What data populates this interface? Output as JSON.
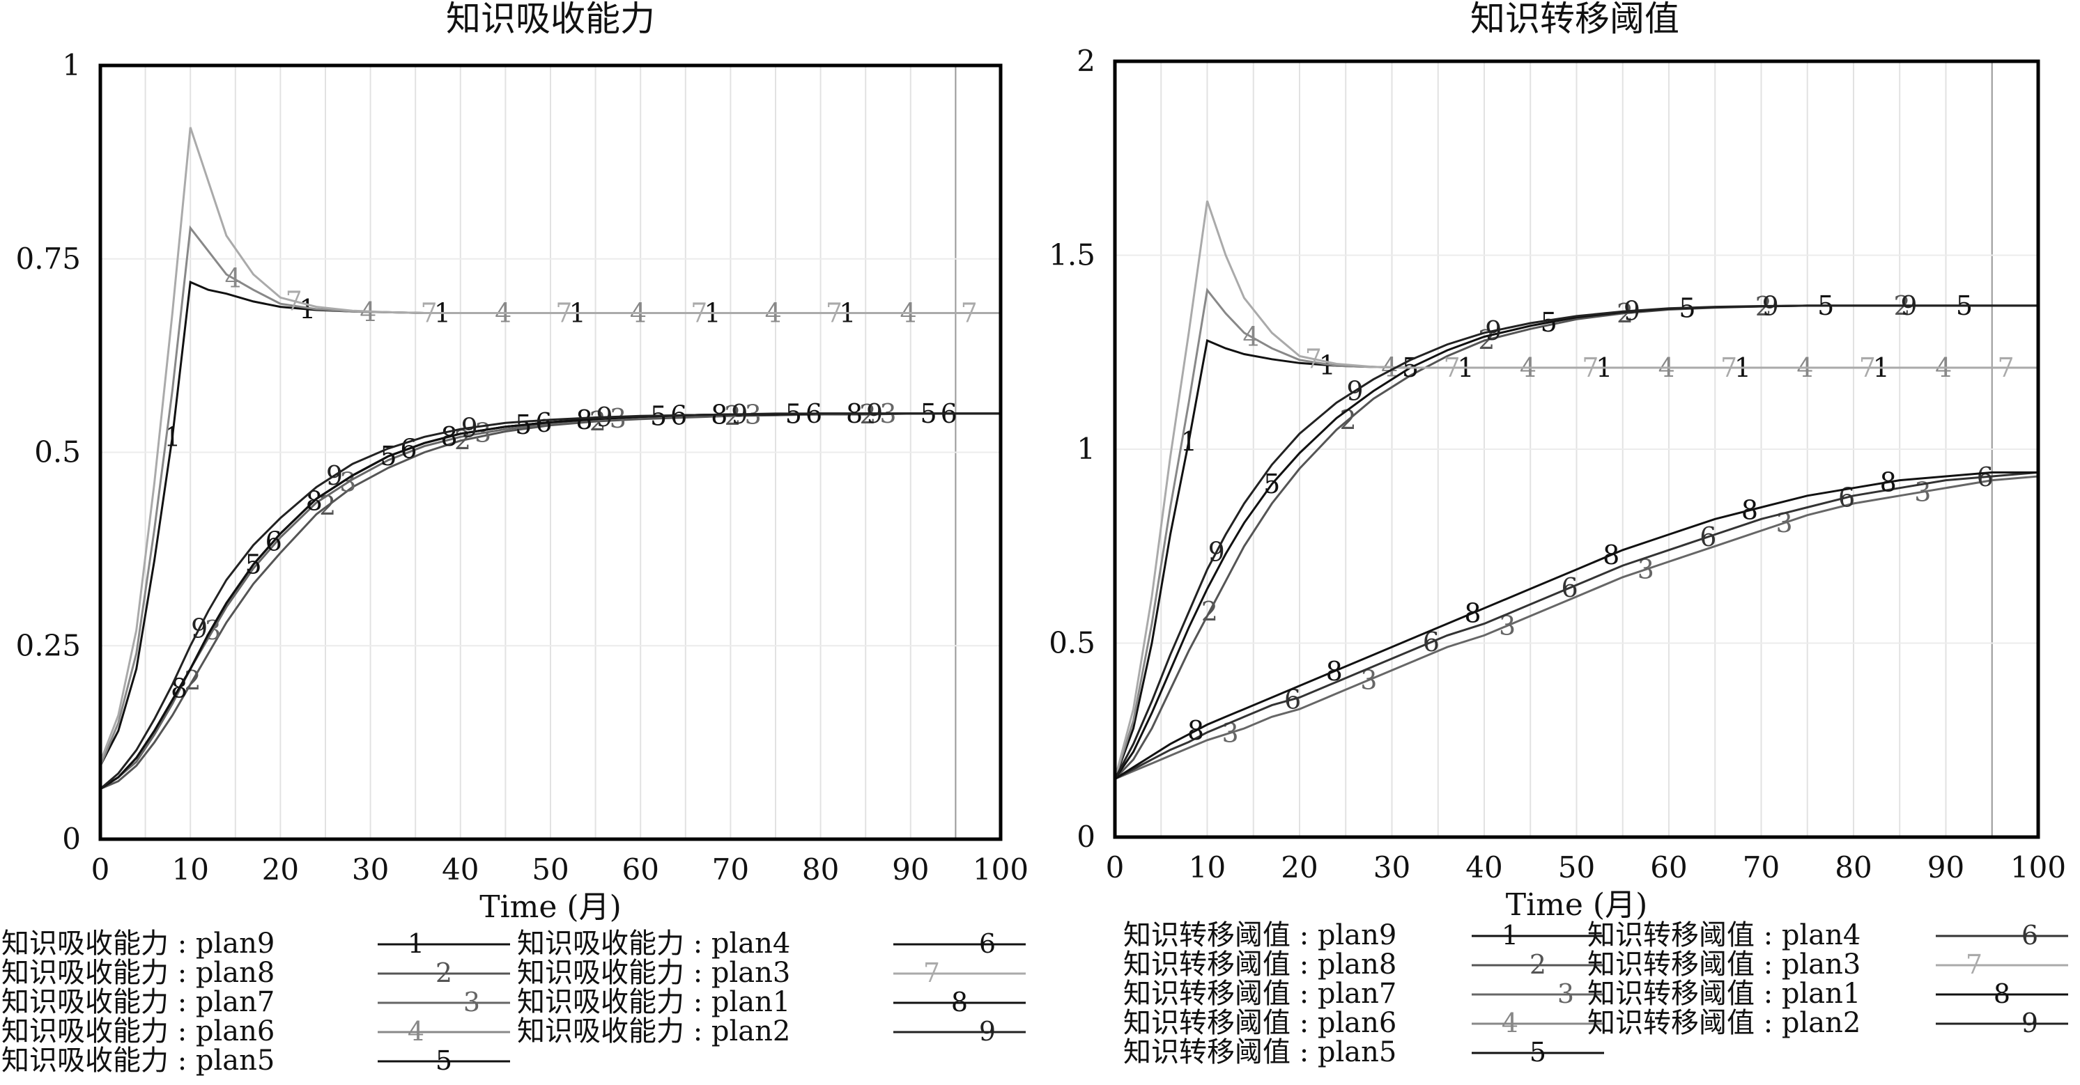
{
  "chart_data": [
    {
      "type": "line",
      "title": "知识吸收能力",
      "xlabel": "Time (月)",
      "ylabel": "",
      "xlim": [
        0,
        100
      ],
      "ylim": [
        0,
        1
      ],
      "x_ticks": [
        "0",
        "10",
        "20",
        "30",
        "40",
        "50",
        "60",
        "70",
        "80",
        "90",
        "100"
      ],
      "y_ticks": [
        "0",
        "0.25",
        "0.5",
        "0.75",
        "1"
      ],
      "grid": "vertical",
      "legend_position": "bottom",
      "x": [
        0,
        2,
        4,
        6,
        8,
        10,
        12,
        14,
        17,
        20,
        24,
        28,
        32,
        36,
        40,
        45,
        50,
        55,
        60,
        65,
        70,
        75,
        80,
        85,
        90,
        95,
        100
      ],
      "series": [
        {
          "legend": "知识吸收能力 : plan9",
          "marker": "1",
          "color": "#111111",
          "values": [
            0.095,
            0.14,
            0.22,
            0.36,
            0.52,
            0.72,
            0.71,
            0.705,
            0.695,
            0.688,
            0.684,
            0.682,
            0.681,
            0.68,
            0.68,
            0.68,
            0.68,
            0.68,
            0.68,
            0.68,
            0.68,
            0.68,
            0.68,
            0.68,
            0.68,
            0.68,
            0.68
          ]
        },
        {
          "legend": "知识吸收能力 : plan8",
          "marker": "2",
          "color": "#555555",
          "values": [
            0.065,
            0.075,
            0.095,
            0.125,
            0.16,
            0.2,
            0.24,
            0.28,
            0.33,
            0.37,
            0.42,
            0.455,
            0.48,
            0.5,
            0.515,
            0.527,
            0.535,
            0.54,
            0.543,
            0.545,
            0.547,
            0.548,
            0.549,
            0.549,
            0.55,
            0.55,
            0.55
          ]
        },
        {
          "legend": "知识吸收能力 : plan7",
          "marker": "3",
          "color": "#666666",
          "values": [
            0.065,
            0.08,
            0.1,
            0.135,
            0.175,
            0.22,
            0.26,
            0.3,
            0.35,
            0.39,
            0.435,
            0.465,
            0.49,
            0.508,
            0.52,
            0.53,
            0.537,
            0.542,
            0.545,
            0.547,
            0.548,
            0.549,
            0.549,
            0.55,
            0.55,
            0.55,
            0.55
          ]
        },
        {
          "legend": "知识吸收能力 : plan6",
          "marker": "4",
          "color": "#888888",
          "values": [
            0.095,
            0.15,
            0.24,
            0.4,
            0.58,
            0.79,
            0.76,
            0.73,
            0.71,
            0.692,
            0.685,
            0.682,
            0.681,
            0.68,
            0.68,
            0.68,
            0.68,
            0.68,
            0.68,
            0.68,
            0.68,
            0.68,
            0.68,
            0.68,
            0.68,
            0.68,
            0.68
          ]
        },
        {
          "legend": "知识吸收能力 : plan5",
          "marker": "5",
          "color": "#111111",
          "values": [
            0.065,
            0.08,
            0.105,
            0.14,
            0.18,
            0.22,
            0.265,
            0.305,
            0.355,
            0.395,
            0.44,
            0.47,
            0.495,
            0.512,
            0.524,
            0.533,
            0.539,
            0.543,
            0.546,
            0.548,
            0.549,
            0.549,
            0.55,
            0.55,
            0.55,
            0.55,
            0.55
          ]
        },
        {
          "legend": "知识吸收能力 : plan4",
          "marker": "6",
          "color": "#111111",
          "values": [
            0.065,
            0.08,
            0.105,
            0.14,
            0.18,
            0.22,
            0.265,
            0.305,
            0.355,
            0.395,
            0.44,
            0.47,
            0.495,
            0.512,
            0.524,
            0.533,
            0.539,
            0.543,
            0.546,
            0.548,
            0.549,
            0.549,
            0.55,
            0.55,
            0.55,
            0.55,
            0.55
          ]
        },
        {
          "legend": "知识吸收能力 : plan3",
          "marker": "7",
          "color": "#aaaaaa",
          "values": [
            0.1,
            0.16,
            0.27,
            0.46,
            0.68,
            0.92,
            0.85,
            0.78,
            0.73,
            0.7,
            0.688,
            0.683,
            0.681,
            0.68,
            0.68,
            0.68,
            0.68,
            0.68,
            0.68,
            0.68,
            0.68,
            0.68,
            0.68,
            0.68,
            0.68,
            0.68,
            0.68
          ]
        },
        {
          "legend": "知识吸收能力 : plan1",
          "marker": "8",
          "color": "#111111",
          "values": [
            0.065,
            0.08,
            0.105,
            0.14,
            0.18,
            0.22,
            0.265,
            0.305,
            0.355,
            0.395,
            0.44,
            0.47,
            0.495,
            0.512,
            0.524,
            0.533,
            0.539,
            0.543,
            0.546,
            0.548,
            0.549,
            0.549,
            0.55,
            0.55,
            0.55,
            0.55,
            0.55
          ]
        },
        {
          "legend": "知识吸收能力 : plan2",
          "marker": "9",
          "color": "#222222",
          "values": [
            0.065,
            0.085,
            0.115,
            0.155,
            0.2,
            0.25,
            0.295,
            0.335,
            0.38,
            0.415,
            0.455,
            0.485,
            0.505,
            0.52,
            0.53,
            0.538,
            0.542,
            0.545,
            0.547,
            0.548,
            0.549,
            0.55,
            0.55,
            0.55,
            0.55,
            0.55,
            0.55
          ]
        }
      ]
    },
    {
      "type": "line",
      "title": "知识转移阈值",
      "xlabel": "Time (月)",
      "ylabel": "",
      "xlim": [
        0,
        100
      ],
      "ylim": [
        0,
        2
      ],
      "x_ticks": [
        "0",
        "10",
        "20",
        "30",
        "40",
        "50",
        "60",
        "70",
        "80",
        "90",
        "100"
      ],
      "y_ticks": [
        "0",
        "0.5",
        "1",
        "1.5",
        "2"
      ],
      "grid": "vertical",
      "legend_position": "bottom",
      "x": [
        0,
        2,
        4,
        6,
        8,
        10,
        12,
        14,
        17,
        20,
        24,
        28,
        32,
        36,
        40,
        45,
        50,
        55,
        60,
        65,
        70,
        75,
        80,
        85,
        90,
        95,
        100
      ],
      "series": [
        {
          "legend": "知识转移阈值 : plan9",
          "marker": "1",
          "color": "#111111",
          "values": [
            0.15,
            0.28,
            0.5,
            0.78,
            1.02,
            1.28,
            1.26,
            1.245,
            1.232,
            1.222,
            1.215,
            1.212,
            1.21,
            1.21,
            1.21,
            1.21,
            1.21,
            1.21,
            1.21,
            1.21,
            1.21,
            1.21,
            1.21,
            1.21,
            1.21,
            1.21,
            1.21
          ]
        },
        {
          "legend": "知识转移阈值 : plan8",
          "marker": "2",
          "color": "#555555",
          "values": [
            0.15,
            0.2,
            0.28,
            0.38,
            0.48,
            0.57,
            0.66,
            0.75,
            0.86,
            0.95,
            1.05,
            1.13,
            1.19,
            1.24,
            1.28,
            1.31,
            1.335,
            1.35,
            1.36,
            1.365,
            1.368,
            1.37,
            1.37,
            1.37,
            1.37,
            1.37,
            1.37
          ]
        },
        {
          "legend": "知识转移阈值 : plan7",
          "marker": "3",
          "color": "#666666",
          "values": [
            0.15,
            0.17,
            0.19,
            0.21,
            0.23,
            0.25,
            0.265,
            0.28,
            0.31,
            0.33,
            0.37,
            0.41,
            0.45,
            0.49,
            0.52,
            0.57,
            0.62,
            0.67,
            0.71,
            0.75,
            0.79,
            0.83,
            0.86,
            0.88,
            0.9,
            0.92,
            0.93
          ]
        },
        {
          "legend": "知识转移阈值 : plan6",
          "marker": "4",
          "color": "#888888",
          "values": [
            0.15,
            0.3,
            0.55,
            0.85,
            1.12,
            1.41,
            1.35,
            1.3,
            1.26,
            1.23,
            1.215,
            1.212,
            1.21,
            1.21,
            1.21,
            1.21,
            1.21,
            1.21,
            1.21,
            1.21,
            1.21,
            1.21,
            1.21,
            1.21,
            1.21,
            1.21,
            1.21
          ]
        },
        {
          "legend": "知识转移阈值 : plan5",
          "marker": "5",
          "color": "#111111",
          "values": [
            0.15,
            0.22,
            0.32,
            0.43,
            0.54,
            0.64,
            0.73,
            0.81,
            0.91,
            0.99,
            1.08,
            1.15,
            1.21,
            1.255,
            1.29,
            1.318,
            1.34,
            1.353,
            1.362,
            1.366,
            1.368,
            1.37,
            1.37,
            1.37,
            1.37,
            1.37,
            1.37
          ]
        },
        {
          "legend": "知识转移阈值 : plan4",
          "marker": "6",
          "color": "#333333",
          "values": [
            0.15,
            0.175,
            0.2,
            0.225,
            0.245,
            0.27,
            0.29,
            0.31,
            0.34,
            0.36,
            0.4,
            0.44,
            0.48,
            0.52,
            0.55,
            0.6,
            0.65,
            0.7,
            0.74,
            0.78,
            0.82,
            0.85,
            0.88,
            0.9,
            0.92,
            0.93,
            0.94
          ]
        },
        {
          "legend": "知识转移阈值 : plan3",
          "marker": "7",
          "color": "#aaaaaa",
          "values": [
            0.15,
            0.33,
            0.62,
            0.98,
            1.3,
            1.64,
            1.5,
            1.39,
            1.3,
            1.24,
            1.22,
            1.212,
            1.21,
            1.21,
            1.21,
            1.21,
            1.21,
            1.21,
            1.21,
            1.21,
            1.21,
            1.21,
            1.21,
            1.21,
            1.21,
            1.21,
            1.21
          ]
        },
        {
          "legend": "知识转移阈值 : plan1",
          "marker": "8",
          "color": "#111111",
          "values": [
            0.15,
            0.18,
            0.21,
            0.24,
            0.265,
            0.29,
            0.31,
            0.33,
            0.36,
            0.39,
            0.43,
            0.47,
            0.51,
            0.55,
            0.59,
            0.64,
            0.69,
            0.74,
            0.78,
            0.82,
            0.85,
            0.88,
            0.9,
            0.92,
            0.93,
            0.94,
            0.94
          ]
        },
        {
          "legend": "知识转移阈值 : plan2",
          "marker": "9",
          "color": "#222222",
          "values": [
            0.15,
            0.24,
            0.35,
            0.47,
            0.58,
            0.69,
            0.78,
            0.86,
            0.96,
            1.04,
            1.12,
            1.18,
            1.23,
            1.27,
            1.3,
            1.325,
            1.343,
            1.355,
            1.363,
            1.367,
            1.369,
            1.37,
            1.37,
            1.37,
            1.37,
            1.37,
            1.37
          ]
        }
      ]
    }
  ]
}
